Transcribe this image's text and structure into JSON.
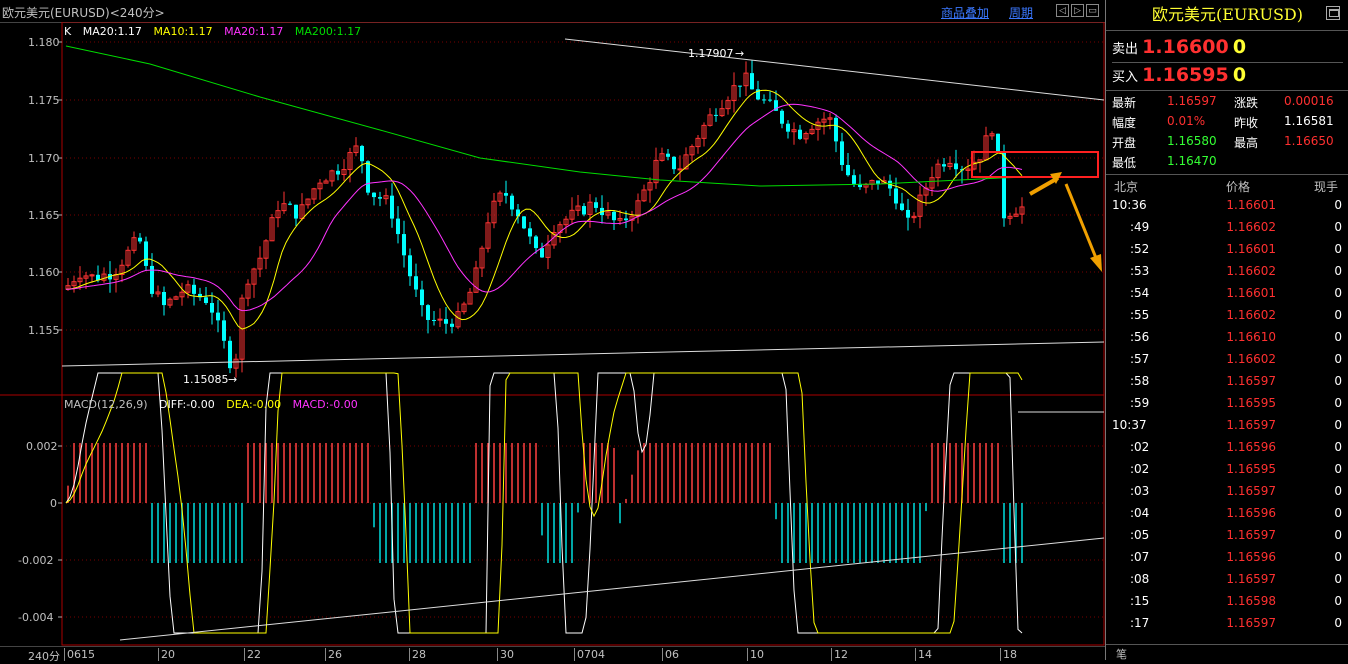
{
  "window": {
    "title": "欧元美元(EURUSD)<240分>",
    "links": [
      "商品叠加",
      "周期"
    ],
    "nav_buttons": [
      "◁",
      "▷",
      "▭"
    ]
  },
  "main_chart": {
    "header": {
      "k": "K",
      "ma20a": "MA20:1.17",
      "ma10": "MA10:1.17",
      "ma20b": "MA20:1.17",
      "ma200": "MA200:1.17"
    },
    "y_ticks": [
      "1.180",
      "1.175",
      "1.170",
      "1.165",
      "1.160",
      "1.155"
    ],
    "annotations": {
      "high": "1.17907",
      "low": "1.15085"
    },
    "colors": {
      "up": "#ff3333",
      "down": "#00ffff",
      "ma20": "#ffffff",
      "ma10": "#ffff00",
      "ma20b": "#ff33ff",
      "ma200": "#00dd00"
    }
  },
  "macd_chart": {
    "header": {
      "name": "MACD(12,26,9)",
      "diff": "DIFF:-0.00",
      "dea": "DEA:-0.00",
      "macd": "MACD:-0.00"
    },
    "y_ticks": [
      "0.002",
      "0",
      "-0.002",
      "-0.004"
    ]
  },
  "x_axis": {
    "period": "240分",
    "labels": [
      "0615",
      "20",
      "22",
      "26",
      "28",
      "30",
      "0704",
      "06",
      "10",
      "12",
      "14",
      "18"
    ]
  },
  "quote": {
    "name": "欧元美元(EURUSD)",
    "sell_label": "卖出",
    "sell_price": "1.16600",
    "sell_vol": "0",
    "buy_label": "买入",
    "buy_price": "1.16595",
    "buy_vol": "0",
    "fields": [
      {
        "label": "最新",
        "value": "1.16597",
        "label2": "涨跌",
        "value2": "0.00016"
      },
      {
        "label": "幅度",
        "value": "0.01%",
        "label2": "昨收",
        "value2": "1.16581"
      },
      {
        "label": "开盘",
        "value": "1.16580",
        "label2": "最高",
        "value2": "1.16650"
      },
      {
        "label": "最低",
        "value": "1.16470",
        "label2": "",
        "value2": ""
      }
    ]
  },
  "ticks": {
    "headers": [
      "北京",
      "价格",
      "现手"
    ],
    "rows": [
      {
        "time": "10:36",
        "price": "1.16601",
        "vol": "0"
      },
      {
        "time": ":49",
        "price": "1.16602",
        "vol": "0"
      },
      {
        "time": ":52",
        "price": "1.16601",
        "vol": "0"
      },
      {
        "time": ":53",
        "price": "1.16602",
        "vol": "0"
      },
      {
        "time": ":54",
        "price": "1.16601",
        "vol": "0"
      },
      {
        "time": ":55",
        "price": "1.16602",
        "vol": "0"
      },
      {
        "time": ":56",
        "price": "1.16610",
        "vol": "0"
      },
      {
        "time": ":57",
        "price": "1.16602",
        "vol": "0"
      },
      {
        "time": ":58",
        "price": "1.16597",
        "vol": "0"
      },
      {
        "time": ":59",
        "price": "1.16595",
        "vol": "0"
      },
      {
        "time": "10:37",
        "price": "1.16597",
        "vol": "0"
      },
      {
        "time": ":02",
        "price": "1.16596",
        "vol": "0"
      },
      {
        "time": ":02",
        "price": "1.16595",
        "vol": "0"
      },
      {
        "time": ":03",
        "price": "1.16597",
        "vol": "0"
      },
      {
        "time": ":04",
        "price": "1.16596",
        "vol": "0"
      },
      {
        "time": ":05",
        "price": "1.16597",
        "vol": "0"
      },
      {
        "time": ":07",
        "price": "1.16596",
        "vol": "0"
      },
      {
        "time": ":08",
        "price": "1.16597",
        "vol": "0"
      },
      {
        "time": ":15",
        "price": "1.16598",
        "vol": "0"
      },
      {
        "time": ":17",
        "price": "1.16597",
        "vol": "0"
      }
    ],
    "footer": "笔"
  }
}
